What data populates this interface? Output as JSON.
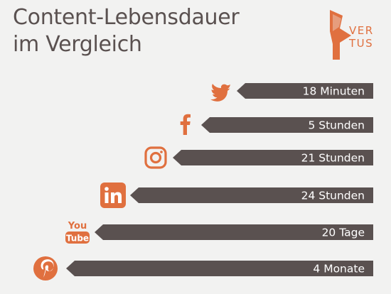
{
  "title_line1": "Content-Lebensdauer",
  "title_line2": "im Vergleich",
  "logo": {
    "line1": "VER",
    "line2": "TUS",
    "color": "#e0703f"
  },
  "colors": {
    "bar": "#5a5150",
    "icon": "#e0703f",
    "background": "#f2f2f1",
    "text": "#5a5150"
  },
  "chart_data": {
    "type": "bar",
    "orientation": "horizontal",
    "categories": [
      "Twitter",
      "Facebook",
      "Instagram",
      "LinkedIn",
      "YouTube",
      "Pinterest"
    ],
    "values": [
      18,
      300,
      1260,
      1440,
      28800,
      172800
    ],
    "unit": "minutes",
    "labels": [
      "18 Minuten",
      "5 Stunden",
      "21 Stunden",
      "24 Stunden",
      "20 Tage",
      "4 Monate"
    ],
    "icons": [
      "twitter-icon",
      "facebook-icon",
      "instagram-icon",
      "linkedin-icon",
      "youtube-icon",
      "pinterest-icon"
    ],
    "youtube_text": {
      "line1": "You",
      "line2": "Tube"
    },
    "scale": "ordinal"
  }
}
